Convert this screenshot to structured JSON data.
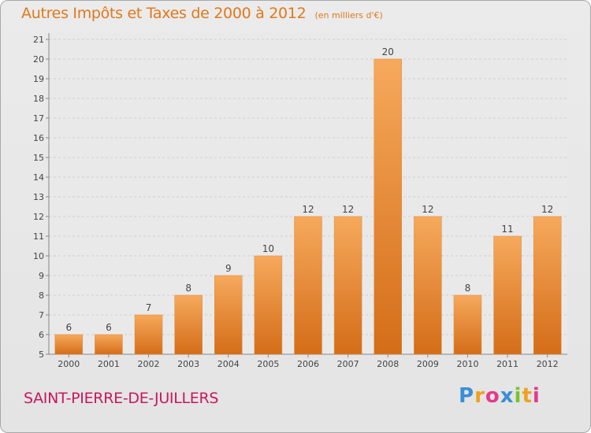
{
  "title": "Autres Impôts et Taxes de 2000 à 2012",
  "subtitle": "(en milliers d'€)",
  "town": "SAINT-PIERRE-DE-JUILLERS",
  "logo": {
    "letters": [
      "P",
      "r",
      "o",
      "x",
      "i",
      "t",
      "i"
    ],
    "colors": [
      "#3a8fd6",
      "#f0a020",
      "#e03c8c",
      "#3a8fd6",
      "#7cc22c",
      "#f0a020",
      "#e03c8c"
    ]
  },
  "colors": {
    "bar_top": "#f6a95c",
    "bar_bottom": "#d46d18",
    "title": "#e0781a",
    "town": "#c8185a"
  },
  "chart_data": {
    "type": "bar",
    "categories": [
      "2000",
      "2001",
      "2002",
      "2003",
      "2004",
      "2005",
      "2006",
      "2007",
      "2008",
      "2009",
      "2010",
      "2011",
      "2012"
    ],
    "values": [
      6,
      6,
      7,
      8,
      9,
      10,
      12,
      12,
      20,
      12,
      8,
      11,
      12
    ],
    "title": "Autres Impôts et Taxes de 2000 à 2012",
    "subtitle": "(en milliers d'€)",
    "xlabel": "",
    "ylabel": "",
    "ylim": [
      5,
      21
    ],
    "yticks": [
      5,
      6,
      7,
      8,
      9,
      10,
      11,
      12,
      13,
      14,
      15,
      16,
      17,
      18,
      19,
      20,
      21
    ],
    "grid": true,
    "data_labels": true
  }
}
